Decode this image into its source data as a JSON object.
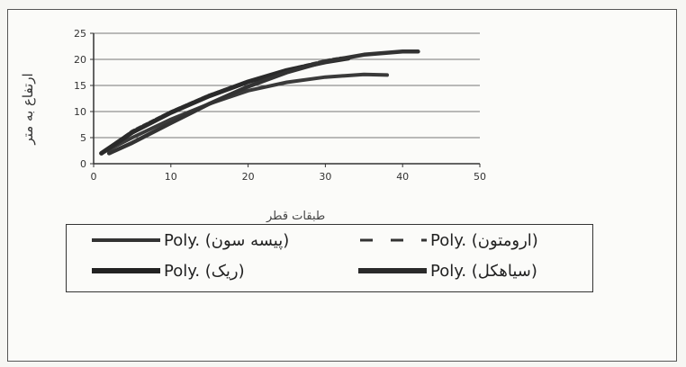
{
  "chart_data": {
    "type": "line",
    "title": "",
    "xlabel": "طبقات قطر",
    "ylabel": "ارتفاع به متر",
    "xlim": [
      0,
      50
    ],
    "ylim": [
      0,
      25
    ],
    "xticks": [
      0,
      10,
      20,
      30,
      40,
      50
    ],
    "yticks": [
      0,
      5,
      10,
      15,
      20,
      25
    ],
    "grid": "horizontal",
    "legend_position": "bottom",
    "series": [
      {
        "name": "Poly. (پیسه سون)",
        "style": "solid-thick",
        "x": [
          1,
          5,
          10,
          15,
          20,
          25,
          30,
          35,
          38
        ],
        "y": [
          2,
          5,
          8.5,
          11.5,
          14,
          15.6,
          16.6,
          17.1,
          17
        ]
      },
      {
        "name": "Poly. (ارومتون)",
        "style": "dashed",
        "x": [
          1,
          5,
          10,
          15,
          20,
          25,
          30,
          32
        ],
        "y": [
          2,
          6.3,
          10,
          13.2,
          15.8,
          18,
          19.8,
          20.3
        ]
      },
      {
        "name": "Poly. (ریک)",
        "style": "solid-thick",
        "x": [
          1,
          5,
          10,
          15,
          20,
          25,
          30,
          33
        ],
        "y": [
          2,
          6,
          9.8,
          13,
          15.7,
          17.9,
          19.5,
          20.2
        ]
      },
      {
        "name": "Poly. (سیاهکل)",
        "style": "solid-thick",
        "x": [
          2,
          5,
          10,
          15,
          20,
          25,
          30,
          35,
          40,
          42
        ],
        "y": [
          2,
          4,
          7.8,
          11.5,
          14.8,
          17.5,
          19.6,
          20.9,
          21.5,
          21.5
        ]
      }
    ]
  }
}
